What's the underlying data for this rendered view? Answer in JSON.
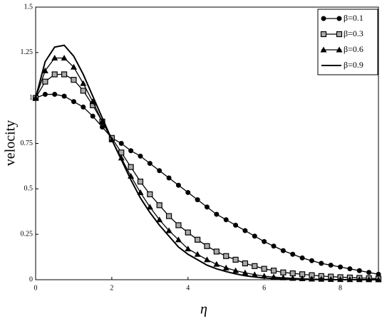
{
  "chart_data": {
    "type": "line",
    "xlabel": "η",
    "ylabel": "velocity",
    "x": [
      0,
      0.25,
      0.5,
      0.75,
      1,
      1.25,
      1.5,
      1.75,
      2,
      2.25,
      2.5,
      2.75,
      3,
      3.25,
      3.5,
      3.75,
      4,
      4.25,
      4.5,
      4.75,
      5,
      5.25,
      5.5,
      5.75,
      6,
      6.25,
      6.5,
      6.75,
      7,
      7.25,
      7.5,
      7.75,
      8,
      8.25,
      8.5,
      8.75,
      9
    ],
    "xlim": [
      0,
      9
    ],
    "xticks": [
      0,
      2,
      4,
      6,
      8
    ],
    "ylim": [
      0,
      1.5
    ],
    "yticks": [
      0,
      0.25,
      0.5,
      0.75,
      1,
      1.25,
      1.5
    ],
    "legend": "upper right",
    "series": [
      {
        "name": "β=0.1",
        "color": "#000000",
        "marker": "circle",
        "values": [
          1.0,
          1.02,
          1.02,
          1.01,
          0.98,
          0.95,
          0.9,
          0.84,
          0.78,
          0.75,
          0.71,
          0.68,
          0.64,
          0.6,
          0.56,
          0.52,
          0.48,
          0.44,
          0.4,
          0.36,
          0.33,
          0.3,
          0.27,
          0.24,
          0.21,
          0.185,
          0.16,
          0.14,
          0.12,
          0.105,
          0.09,
          0.08,
          0.07,
          0.06,
          0.05,
          0.04,
          0.03
        ]
      },
      {
        "name": "β=0.3",
        "color": "#000000",
        "marker": "square",
        "values": [
          1.0,
          1.09,
          1.13,
          1.13,
          1.1,
          1.04,
          0.96,
          0.87,
          0.78,
          0.7,
          0.62,
          0.54,
          0.47,
          0.41,
          0.35,
          0.3,
          0.26,
          0.22,
          0.185,
          0.155,
          0.13,
          0.11,
          0.09,
          0.075,
          0.06,
          0.05,
          0.04,
          0.035,
          0.03,
          0.025,
          0.02,
          0.017,
          0.014,
          0.012,
          0.01,
          0.008,
          0.006
        ]
      },
      {
        "name": "β=0.6",
        "color": "#000000",
        "marker": "triangle",
        "values": [
          1.0,
          1.15,
          1.22,
          1.22,
          1.17,
          1.08,
          0.98,
          0.87,
          0.77,
          0.67,
          0.57,
          0.48,
          0.4,
          0.33,
          0.27,
          0.22,
          0.17,
          0.14,
          0.11,
          0.085,
          0.065,
          0.05,
          0.038,
          0.028,
          0.02,
          0.015,
          0.011,
          0.008,
          0.006,
          0.004,
          0.003,
          0.002,
          0.0015,
          0.001,
          0.001,
          0.0005,
          0
        ]
      },
      {
        "name": "β=0.9",
        "color": "#000000",
        "marker": "none",
        "values": [
          1.0,
          1.2,
          1.28,
          1.29,
          1.23,
          1.13,
          1.01,
          0.89,
          0.77,
          0.66,
          0.55,
          0.45,
          0.37,
          0.3,
          0.24,
          0.18,
          0.14,
          0.11,
          0.08,
          0.06,
          0.045,
          0.032,
          0.022,
          0.015,
          0.01,
          0.007,
          0.005,
          0.003,
          0.002,
          0.001,
          0.001,
          0,
          0,
          0,
          0,
          0,
          0
        ]
      }
    ]
  }
}
